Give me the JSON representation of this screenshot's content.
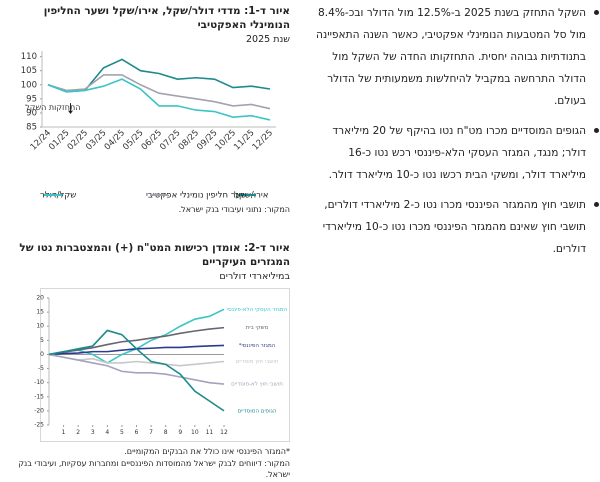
{
  "text": {
    "bullets": [
      "השקל התחזק בשנת 2025 ב-12.5% מול הדולר ובכ-8.4% מול סל המטבעות הנומינלי אפקטיבי, כאשר השנה התאפיינה בתנודתיות גבוהה יחסית. התחזקותו החדה של השקל מול הדולר התרחשה במקביל להיחלשות משמעותית של הדולר בעולם.",
      "הגופים המוסדיים מכרו מט\"ח נטו בהיקף של 20 מיליארד דולר; מנגד, המגזר העסקי הלא-פיננסי רכש נטו כ-16 מיליארד דולר, ומשקי הבית רכשו נטו כ-10 מיליארד דולר.",
      "תושבי חוץ מהמגזר הפיננסי מכרו נטו כ-2 מיליארדי דולרים, תושבי חוץ שאינם מהמגזר הפיננסי מכרו נטו כ-10 מיליארדי דולרים."
    ]
  },
  "chart_data": [
    {
      "type": "line",
      "title": "איור ד-1: מדדי דולר/שקל, אירו/שקל ושער החליפין הנומינלי האפקטיבי",
      "subtitle": "שנת 2025",
      "categories": [
        "12/24",
        "01/25",
        "02/25",
        "03/25",
        "04/25",
        "05/25",
        "06/25",
        "07/25",
        "08/25",
        "09/25",
        "10/25",
        "11/25",
        "12/25"
      ],
      "series": [
        {
          "name": "אירו/שקל",
          "color": "#1d8a8c",
          "values": [
            100,
            97.5,
            98,
            106,
            109,
            105,
            104,
            102,
            102.5,
            102,
            99,
            99.5,
            98.5
          ]
        },
        {
          "name": "שער חליפין נומינלי אפקטיבי",
          "color": "#a3a3ad",
          "values": [
            100,
            98,
            98.5,
            103.5,
            103.5,
            100,
            97,
            96,
            95,
            94,
            92.5,
            93,
            91.5
          ]
        },
        {
          "name": "שקל/דולר",
          "color": "#3cc4c6",
          "values": [
            100,
            97.5,
            98,
            99.5,
            102,
            98.5,
            92.5,
            92.5,
            91,
            90.5,
            88.5,
            89,
            87.5
          ]
        }
      ],
      "ylim": [
        85,
        112
      ],
      "yticks": [
        85,
        90,
        95,
        100,
        105,
        110
      ],
      "annotation": "התחזקות השקל",
      "source": "המקור: נתוני ועיבודי בנק ישראל."
    },
    {
      "type": "line",
      "title": "איור ד-2: אומדן רכישות המט\"ח (+) והמצטברות נטו של המגזרים העיקריים",
      "subtitle": "במיליארדי דולרים",
      "x": [
        0,
        1,
        2,
        3,
        4,
        5,
        6,
        7,
        8,
        9,
        10,
        11,
        12
      ],
      "xlim": [
        0,
        12
      ],
      "xticks": [
        1,
        2,
        3,
        4,
        5,
        6,
        7,
        8,
        9,
        10,
        11,
        12
      ],
      "series": [
        {
          "name": "המגזר העסקי הלא-פיננסי",
          "color": "#3cc4c6",
          "values": [
            0,
            1,
            1.5,
            0,
            -3,
            0,
            2,
            5,
            7,
            10,
            12.5,
            13.5,
            16
          ]
        },
        {
          "name": "משקי בית",
          "color": "#666670",
          "values": [
            0,
            0.8,
            1.6,
            2.4,
            3.5,
            4.5,
            5,
            5.8,
            6.5,
            7.5,
            8.3,
            9,
            9.5
          ]
        },
        {
          "name": "המגזר הפיננסי*",
          "color": "#2e3a8c",
          "values": [
            0,
            0.3,
            0.5,
            1,
            1,
            1.5,
            2,
            2.2,
            2.5,
            2.5,
            2.8,
            3,
            3.2
          ]
        },
        {
          "name": "תושבי חוץ מוסדיים",
          "color": "#c8c8cc",
          "values": [
            0,
            -1,
            -2,
            -1.5,
            -3,
            -3,
            -2.5,
            -3,
            -3.5,
            -4,
            -3.5,
            -3,
            -2.5
          ]
        },
        {
          "name": "תושבי חוץ לא-מוסדיים",
          "color": "#a3a3bd",
          "values": [
            0,
            -1,
            -2,
            -3,
            -4,
            -6,
            -6.5,
            -6.5,
            -7,
            -8,
            -9,
            -10,
            -10.5
          ]
        },
        {
          "name": "הגופים המוסדיים",
          "color": "#1d8a8c",
          "values": [
            0,
            1,
            2,
            3,
            8.5,
            7,
            2,
            -2.5,
            -3.5,
            -7,
            -13,
            -16.5,
            -20
          ]
        }
      ],
      "ylim": [
        -25,
        20
      ],
      "yticks": [
        -25,
        -20,
        -15,
        -10,
        -5,
        0,
        5,
        10,
        15,
        20
      ],
      "notes": [
        "*המגזר הפיננסי אינו כולל את הבנקים המקומיים.",
        "המקור: דיווחים לבנק ישראל מהמוסדות הפיננסיים ומחברות עסקיות, ועיבודי בנק ישראל."
      ]
    }
  ]
}
